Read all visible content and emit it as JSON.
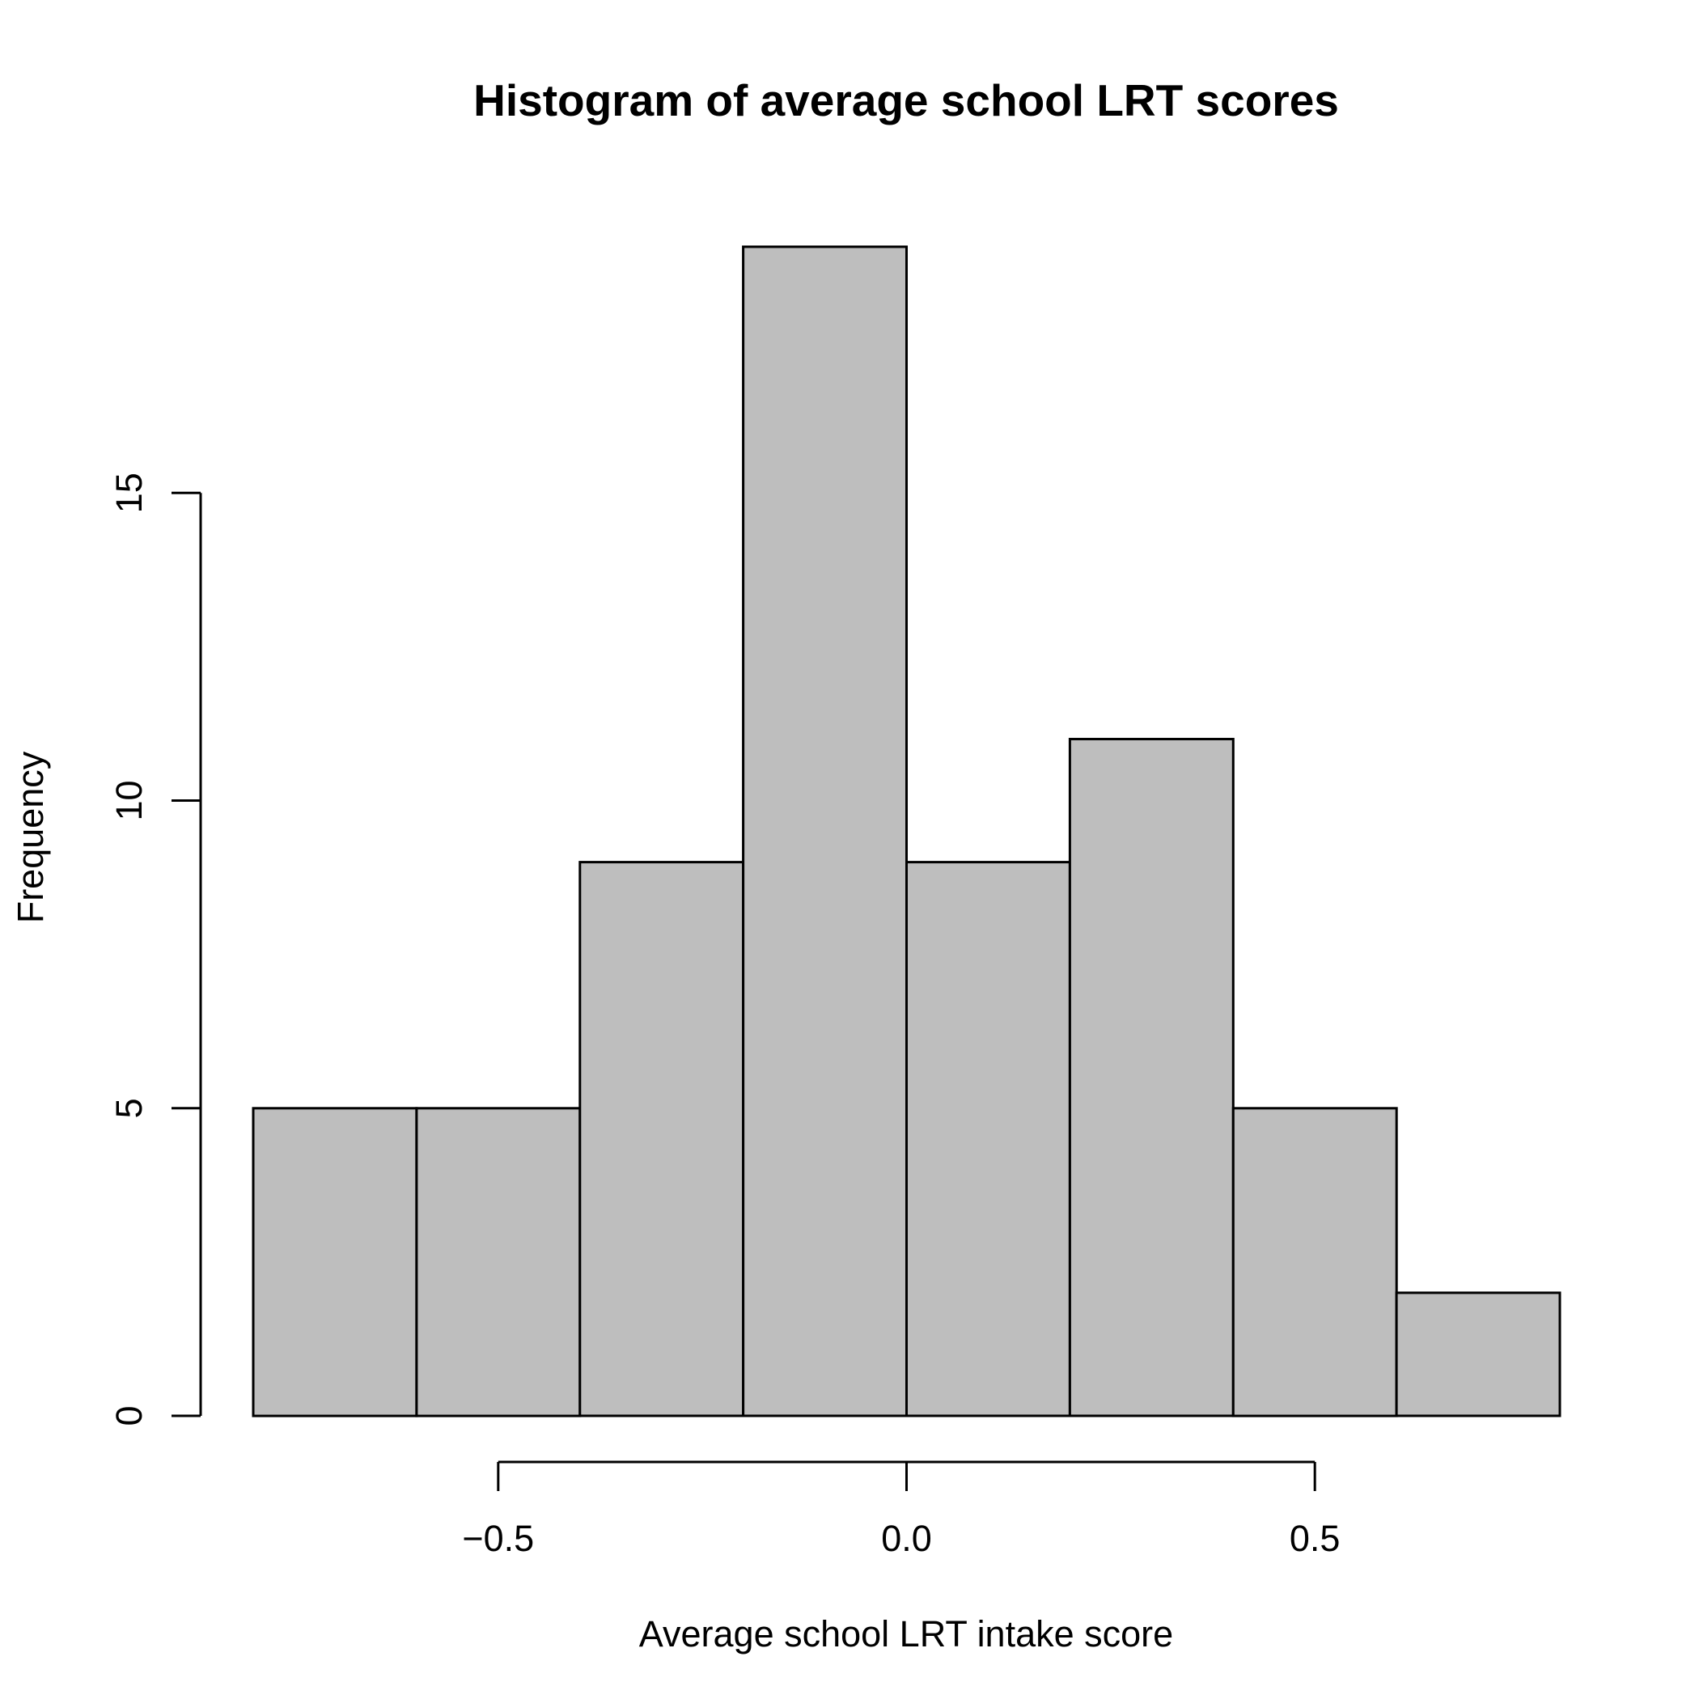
{
  "chart_data": {
    "type": "bar",
    "title": "Histogram of average school LRT scores",
    "xlabel": "Average school LRT intake score",
    "ylabel": "Frequency",
    "bins": [
      {
        "start": -0.8,
        "end": -0.6,
        "count": 5
      },
      {
        "start": -0.6,
        "end": -0.4,
        "count": 5
      },
      {
        "start": -0.4,
        "end": -0.2,
        "count": 9
      },
      {
        "start": -0.2,
        "end": 0.0,
        "count": 19
      },
      {
        "start": 0.0,
        "end": 0.2,
        "count": 9
      },
      {
        "start": 0.2,
        "end": 0.4,
        "count": 11
      },
      {
        "start": 0.4,
        "end": 0.6,
        "count": 5
      },
      {
        "start": 0.6,
        "end": 0.8,
        "count": 2
      }
    ],
    "x_ticks": [
      {
        "value": -0.5,
        "label": "−0.5"
      },
      {
        "value": 0.0,
        "label": "0.0"
      },
      {
        "value": 0.5,
        "label": "0.5"
      }
    ],
    "y_ticks": [
      {
        "value": 0,
        "label": "0"
      },
      {
        "value": 5,
        "label": "5"
      },
      {
        "value": 10,
        "label": "10"
      },
      {
        "value": 15,
        "label": "15"
      }
    ],
    "xlim": [
      -0.8,
      0.8
    ],
    "ylim": [
      0,
      19
    ],
    "bar_color": "#bebebe",
    "edge_color": "#000000",
    "grid": false
  }
}
